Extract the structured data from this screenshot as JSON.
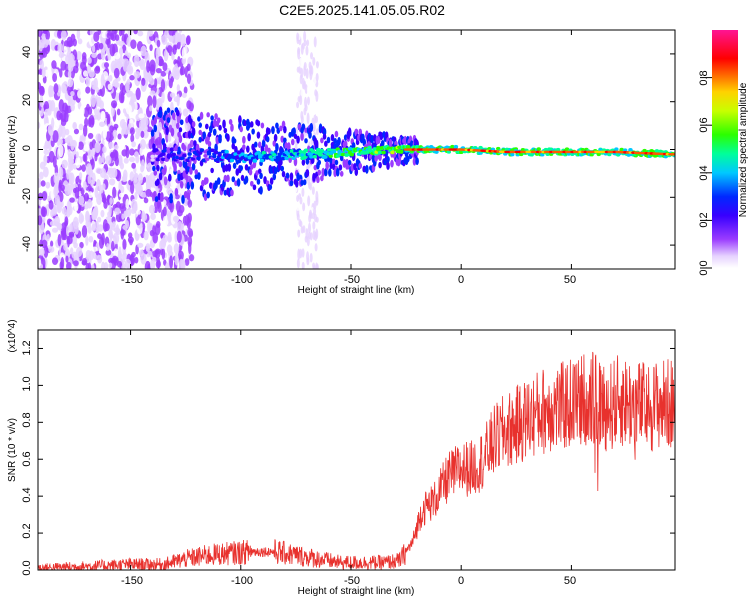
{
  "figure": {
    "title": "C2E5.2025.141.05.05.R02"
  },
  "chart_data": [
    {
      "type": "heatmap",
      "title": "C2E5.2025.141.05.05.R02",
      "xlabel": "Height of straight line (km)",
      "ylabel": "Frequency (Hz)",
      "xlim": [
        -192,
        97
      ],
      "ylim": [
        -50,
        50
      ],
      "x_ticks": [
        "-150",
        "-100",
        "-50",
        "0",
        "50"
      ],
      "y_ticks": [
        "40",
        "20",
        "0",
        "-20",
        "-40"
      ],
      "colorbar": {
        "label": "Normalized spectral amplitude",
        "range": [
          0,
          1
        ],
        "ticks": [
          "0.0",
          "0.2",
          "0.4",
          "0.6",
          "0.8"
        ],
        "colormap": "rainbow (white-violet-blue-cyan-green-yellow-red-magenta)"
      },
      "band_center_hz": [
        {
          "x": -130,
          "f": -2
        },
        {
          "x": -100,
          "f": -3
        },
        {
          "x": -70,
          "f": -2
        },
        {
          "x": -50,
          "f": -1
        },
        {
          "x": -30,
          "f": 0
        },
        {
          "x": -10,
          "f": 0
        },
        {
          "x": 0,
          "f": 0
        },
        {
          "x": 20,
          "f": -1
        },
        {
          "x": 50,
          "f": -1
        },
        {
          "x": 70,
          "f": -1
        },
        {
          "x": 95,
          "f": -2
        }
      ],
      "grid": false
    },
    {
      "type": "line",
      "xlabel": "Height of straight line (km)",
      "ylabel": "SNR (10 * v/v)",
      "y_multiplier": "(x10^4)",
      "xlim": [
        -192,
        97
      ],
      "ylim": [
        0,
        1.3
      ],
      "x_ticks": [
        "-150",
        "-100",
        "-50",
        "0",
        "50"
      ],
      "y_ticks": [
        "0.0",
        "0.2",
        "0.4",
        "0.6",
        "0.8",
        "1.0",
        "1.2"
      ],
      "color": "#e8312d",
      "series": [
        {
          "x": [
            -192,
            -170,
            -150,
            -135,
            -125,
            -115,
            -105,
            -95,
            -85,
            -75,
            -65,
            -55,
            -45,
            -35,
            -28,
            -22,
            -18,
            -12,
            -6,
            0,
            5,
            10,
            15,
            20,
            25,
            30,
            35,
            40,
            45,
            50,
            55,
            58,
            62,
            67,
            72,
            78,
            85,
            90,
            97
          ],
          "y": [
            0.01,
            0.02,
            0.03,
            0.03,
            0.06,
            0.08,
            0.09,
            0.1,
            0.1,
            0.08,
            0.06,
            0.04,
            0.04,
            0.04,
            0.05,
            0.15,
            0.32,
            0.38,
            0.5,
            0.55,
            0.55,
            0.6,
            0.7,
            0.75,
            0.78,
            0.82,
            0.85,
            0.88,
            0.88,
            0.9,
            0.92,
            0.95,
            0.9,
            0.88,
            0.92,
            0.9,
            0.88,
            0.9,
            0.9
          ]
        }
      ],
      "grid": false
    }
  ]
}
